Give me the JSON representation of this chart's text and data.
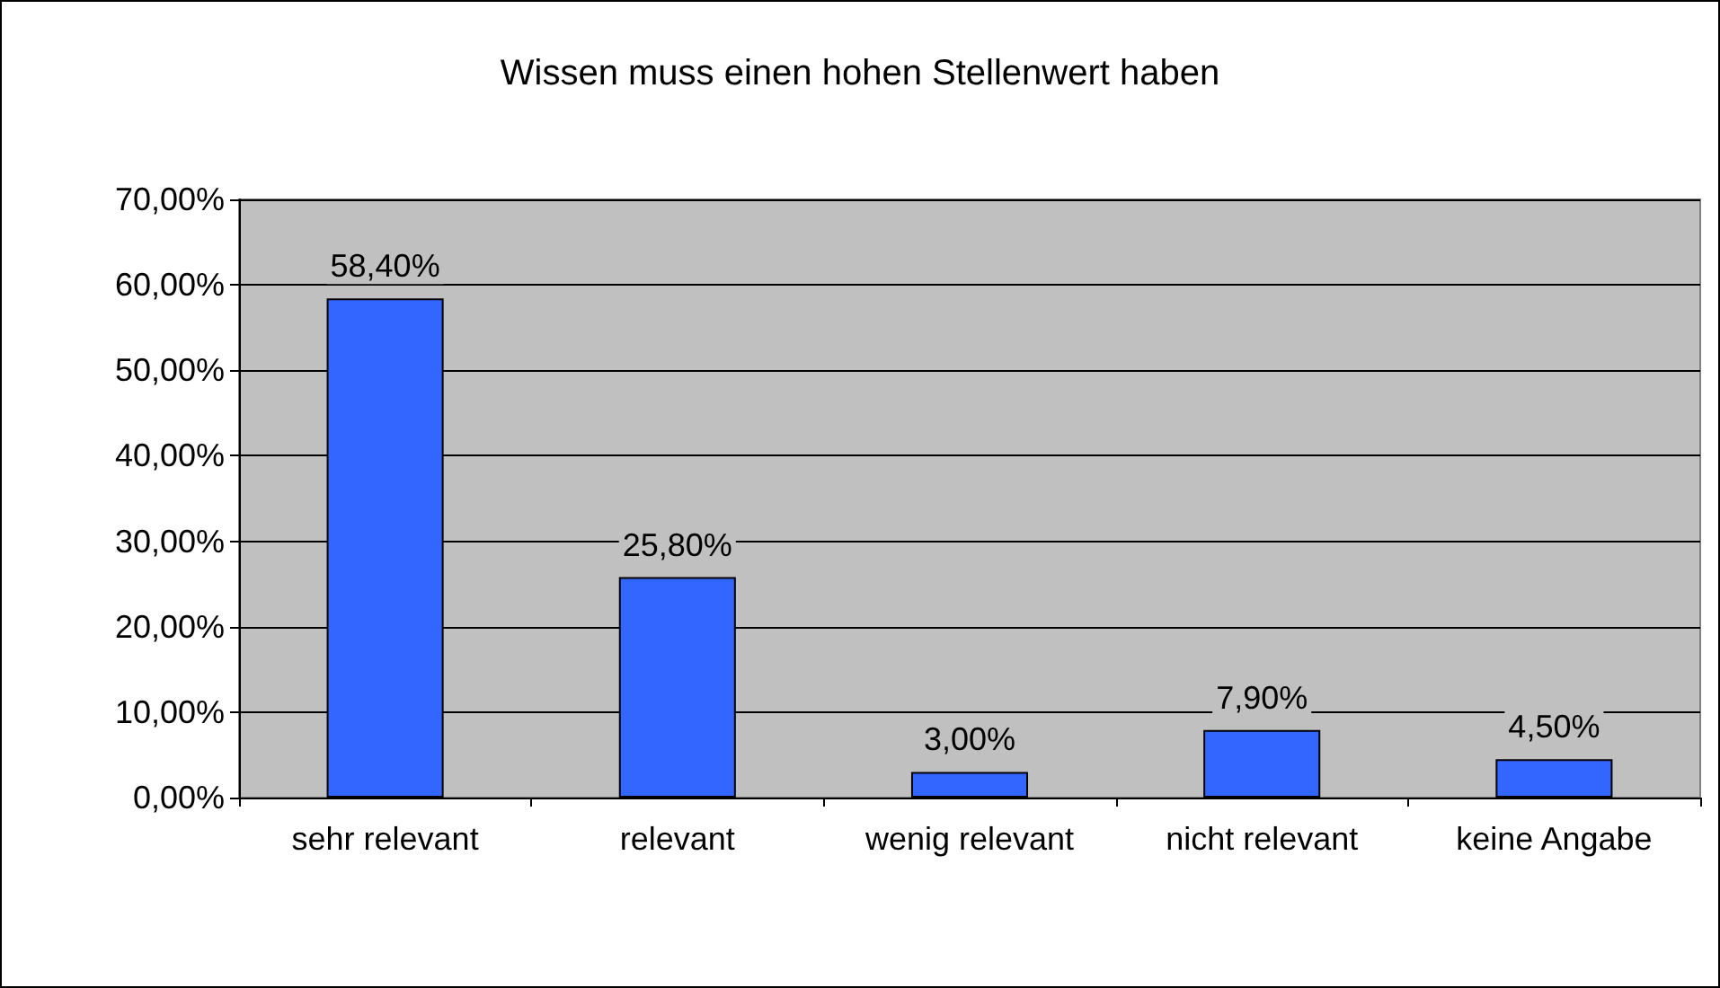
{
  "chart_data": {
    "type": "bar",
    "title": "Wissen muss einen hohen Stellenwert haben",
    "categories": [
      "sehr relevant",
      "relevant",
      "wenig relevant",
      "nicht relevant",
      "keine Angabe"
    ],
    "values": [
      58.4,
      25.8,
      3.0,
      7.9,
      4.5
    ],
    "value_labels": [
      "58,40%",
      "25,80%",
      "3,00%",
      "7,90%",
      "4,50%"
    ],
    "color": "#3366ff",
    "ylim": [
      0,
      70
    ],
    "yticks": [
      {
        "value": 0,
        "label": "0,00%"
      },
      {
        "value": 10,
        "label": "10,00%"
      },
      {
        "value": 20,
        "label": "20,00%"
      },
      {
        "value": 30,
        "label": "30,00%"
      },
      {
        "value": 40,
        "label": "40,00%"
      },
      {
        "value": 50,
        "label": "50,00%"
      },
      {
        "value": 60,
        "label": "60,00%"
      },
      {
        "value": 70,
        "label": "70,00%"
      }
    ],
    "grid": "y"
  }
}
